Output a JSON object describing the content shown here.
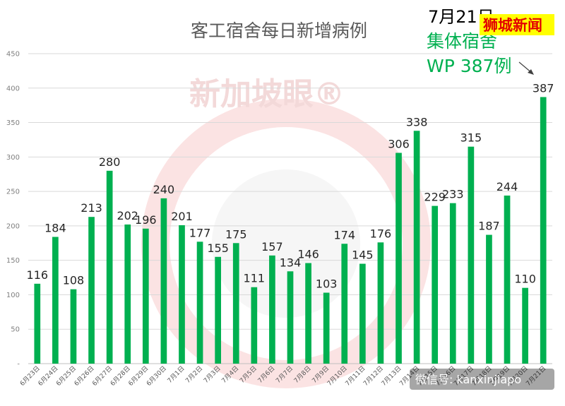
{
  "chart_data": {
    "type": "bar",
    "title": "客工宿舍每日新增病例",
    "categories": [
      "6月23日",
      "6月24日",
      "6月25日",
      "6月26日",
      "6月27日",
      "6月28日",
      "6月29日",
      "6月30日",
      "7月1日",
      "7月2日",
      "7月3日",
      "7月4日",
      "7月5日",
      "7月6日",
      "7月7日",
      "7月8日",
      "7月9日",
      "7月10日",
      "7月11日",
      "7月12日",
      "7月13日",
      "7月14日",
      "7月15日",
      "7月16日",
      "7月17日",
      "7月18日",
      "7月19日",
      "7月20日",
      "7月21日"
    ],
    "values": [
      116,
      184,
      108,
      213,
      280,
      202,
      196,
      240,
      201,
      177,
      155,
      175,
      111,
      157,
      134,
      146,
      103,
      174,
      145,
      176,
      306,
      338,
      229,
      233,
      315,
      187,
      244,
      110,
      387
    ],
    "ylim": [
      0,
      450
    ],
    "yticks": [
      0,
      50,
      100,
      150,
      200,
      250,
      300,
      350,
      400,
      450
    ],
    "ytick_labels": [
      "-",
      "50",
      "100",
      "150",
      "200",
      "250",
      "300",
      "350",
      "400",
      "450"
    ],
    "grid": true,
    "bar_color": "#00b050"
  },
  "annotation": {
    "date": "7月21日",
    "line1": "集体宿舍",
    "line2": "WP 387例"
  },
  "watermark": {
    "text": "新加坡眼®"
  },
  "brand": {
    "text": "狮城新闻"
  },
  "wechat": {
    "text": "微信号: kanxinjiapo"
  }
}
